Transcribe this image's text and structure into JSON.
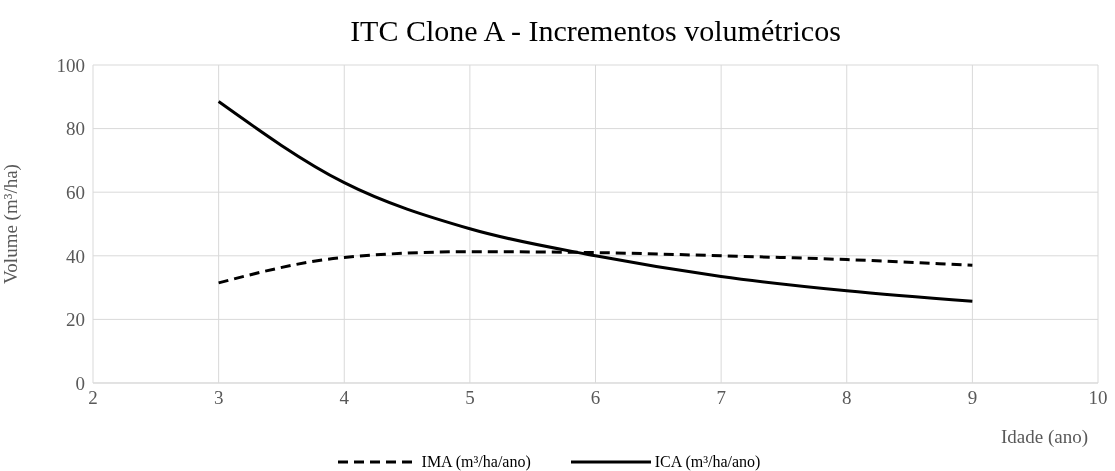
{
  "chart_data": {
    "type": "line",
    "title": "ITC Clone A - Incrementos volumétricos",
    "xlabel": "Idade (ano)",
    "ylabel": "Volume (m³/ha)",
    "x": [
      3,
      4,
      5,
      6,
      7,
      8,
      9
    ],
    "series": [
      {
        "name": "IMA (m³/ha/ano)",
        "color": "#000000",
        "line_style": "dashed",
        "values": [
          31.5,
          39.5,
          41.3,
          41,
          40,
          38.8,
          37
        ]
      },
      {
        "name": "ICA (m³/ha/ano)",
        "color": "#000000",
        "line_style": "solid",
        "values": [
          88.5,
          63,
          48.5,
          40,
          33.5,
          29,
          25.7
        ]
      }
    ],
    "xlim": [
      2,
      10
    ],
    "xticks": [
      2,
      3,
      4,
      5,
      6,
      7,
      8,
      9,
      10
    ],
    "ylim": [
      0,
      100
    ],
    "yticks": [
      0,
      20,
      40,
      60,
      80,
      100
    ],
    "grid": true,
    "legend": "bottom",
    "marker": "none"
  }
}
